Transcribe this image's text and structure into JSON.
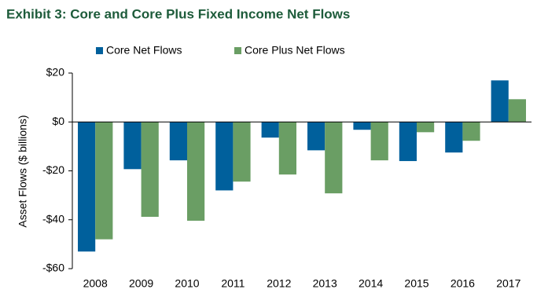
{
  "chart_data": {
    "type": "bar",
    "title": "Exhibit 3: Core and Core Plus Fixed Income Net Flows",
    "y_label": "Asset Flows ($ billions)",
    "categories": [
      "2008",
      "2009",
      "2010",
      "2011",
      "2012",
      "2013",
      "2014",
      "2015",
      "2016",
      "2017"
    ],
    "series": [
      {
        "name": "Core Net Flows",
        "color": "#00609c",
        "values": [
          -53,
          -19.3,
          -15.7,
          -28,
          -6.4,
          -11.6,
          -3.2,
          -16,
          -12.5,
          17
        ]
      },
      {
        "name": "Core Plus Net Flows",
        "color": "#6a9e64",
        "values": [
          -48,
          -38.8,
          -40.4,
          -24.4,
          -21.5,
          -29.2,
          -15.7,
          -4.2,
          -7.7,
          9.3
        ]
      }
    ],
    "ylim": [
      -60,
      20
    ],
    "yticks": [
      {
        "value": -60,
        "label": "-$60"
      },
      {
        "value": -40,
        "label": "-$40"
      },
      {
        "value": -20,
        "label": "-$20"
      },
      {
        "value": 0,
        "label": "$0"
      },
      {
        "value": 20,
        "label": "$20"
      }
    ],
    "grid": false
  }
}
